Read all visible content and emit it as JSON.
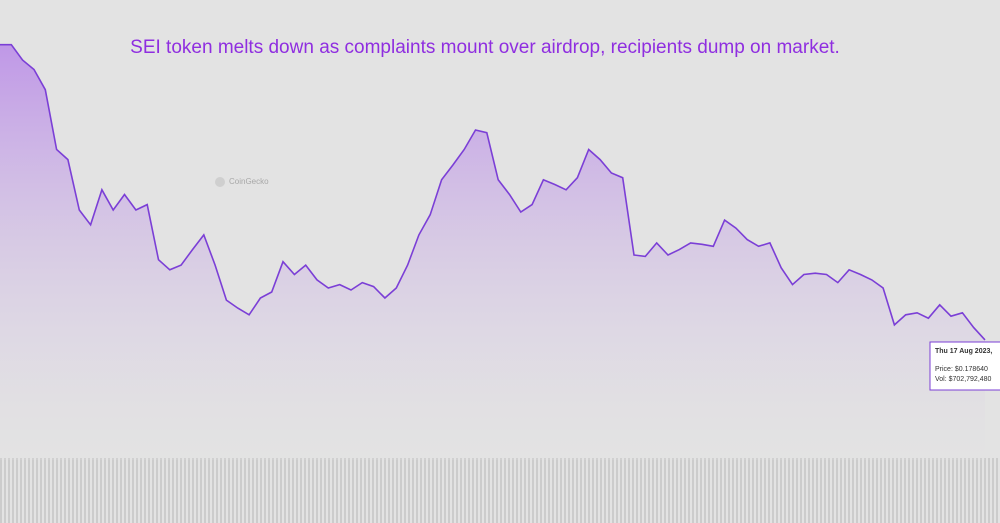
{
  "chart_data": {
    "type": "area",
    "title": "SEI token melts down as complaints mount over airdrop, recipients dump on market.",
    "watermark": "CoinGecko",
    "tooltip": {
      "date": "Thu 17 Aug 2023,",
      "price": "Price: $0.178640",
      "volume": "Vol: $702,792,480"
    },
    "color": "#7b3fd6",
    "ylim": [
      0,
      0.68
    ],
    "values": [
      0.618,
      0.618,
      0.595,
      0.581,
      0.551,
      0.462,
      0.447,
      0.372,
      0.35,
      0.402,
      0.372,
      0.395,
      0.372,
      0.38,
      0.298,
      0.283,
      0.29,
      0.313,
      0.335,
      0.29,
      0.238,
      0.226,
      0.216,
      0.241,
      0.25,
      0.295,
      0.276,
      0.29,
      0.268,
      0.256,
      0.261,
      0.253,
      0.264,
      0.258,
      0.241,
      0.256,
      0.29,
      0.335,
      0.365,
      0.417,
      0.439,
      0.462,
      0.491,
      0.487,
      0.417,
      0.395,
      0.369,
      0.38,
      0.417,
      0.41,
      0.402,
      0.42,
      0.462,
      0.447,
      0.427,
      0.42,
      0.305,
      0.303,
      0.323,
      0.305,
      0.313,
      0.323,
      0.321,
      0.318,
      0.357,
      0.345,
      0.328,
      0.318,
      0.323,
      0.286,
      0.261,
      0.276,
      0.278,
      0.276,
      0.264,
      0.283,
      0.276,
      0.268,
      0.256,
      0.201,
      0.216,
      0.219,
      0.211,
      0.231,
      0.214,
      0.219,
      0.197,
      0.17864
    ]
  }
}
